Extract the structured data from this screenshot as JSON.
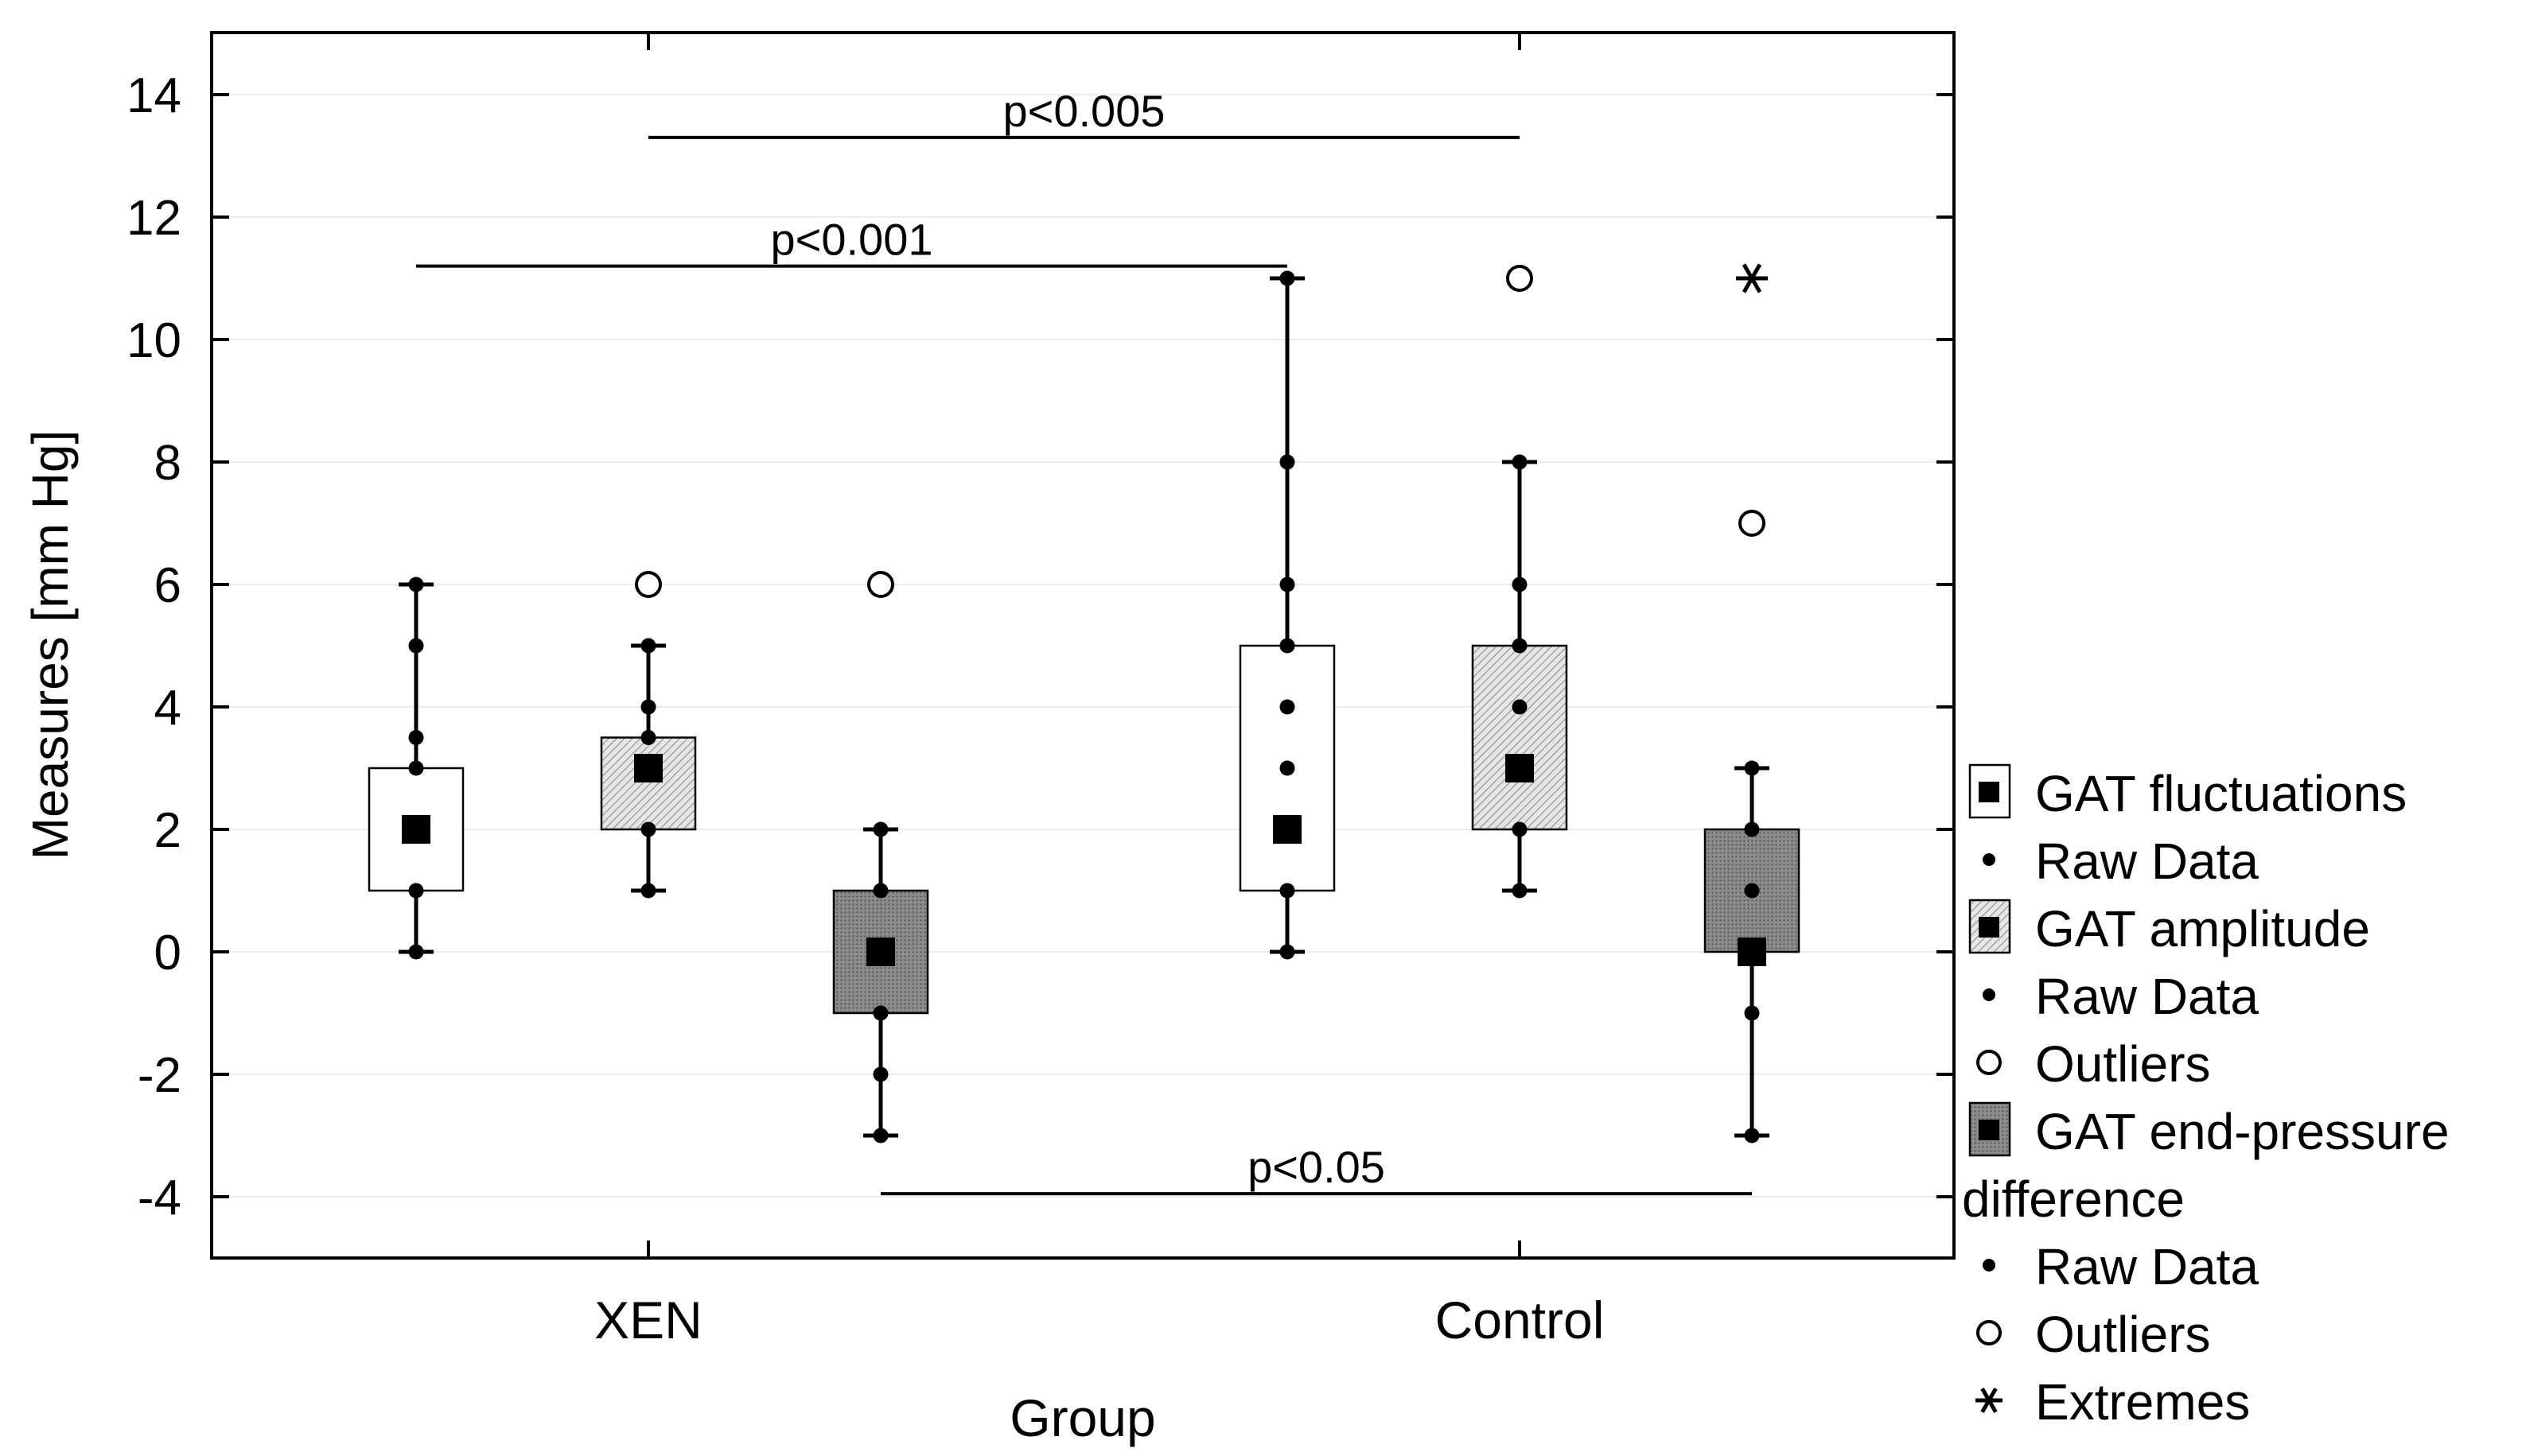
{
  "chart_data": {
    "type": "box",
    "title": "",
    "xlabel": "Group",
    "ylabel": "Measures [mm Hg]",
    "ylim": [
      -5,
      15
    ],
    "yticks": [
      14,
      12,
      10,
      8,
      6,
      4,
      2,
      0,
      -2,
      -4
    ],
    "categories": [
      "XEN",
      "Control"
    ],
    "series": [
      {
        "name": "GAT fluctuations",
        "fill": "white",
        "groups": [
          {
            "group": "XEN",
            "median": 2,
            "q1": 1,
            "q3": 3,
            "whisker_low": 0,
            "whisker_high": 6,
            "raw": [
              0,
              1,
              2,
              3,
              3.5,
              5,
              6
            ],
            "outliers": [],
            "extremes": []
          },
          {
            "group": "Control",
            "median": 2,
            "q1": 1,
            "q3": 5,
            "whisker_low": 0,
            "whisker_high": 11,
            "raw": [
              0,
              1,
              2,
              3,
              4,
              5,
              6,
              8,
              11
            ],
            "outliers": [],
            "extremes": []
          }
        ]
      },
      {
        "name": "GAT amplitude",
        "fill": "light-hatch",
        "groups": [
          {
            "group": "XEN",
            "median": 3,
            "q1": 2,
            "q3": 3.5,
            "whisker_low": 1,
            "whisker_high": 5,
            "raw": [
              1,
              2,
              3,
              3.5,
              4,
              5
            ],
            "outliers": [
              6
            ],
            "extremes": []
          },
          {
            "group": "Control",
            "median": 3,
            "q1": 2,
            "q3": 5,
            "whisker_low": 1,
            "whisker_high": 8,
            "raw": [
              1,
              2,
              3,
              4,
              5,
              6,
              8
            ],
            "outliers": [
              11
            ],
            "extremes": []
          }
        ]
      },
      {
        "name": "GAT end-pressure difference",
        "fill": "dark-dots",
        "groups": [
          {
            "group": "XEN",
            "median": 0,
            "q1": -1,
            "q3": 1,
            "whisker_low": -3,
            "whisker_high": 2,
            "raw": [
              -3,
              -2,
              -1,
              0,
              1,
              2
            ],
            "outliers": [
              6
            ],
            "extremes": []
          },
          {
            "group": "Control",
            "median": 0,
            "q1": 0,
            "q3": 2,
            "whisker_low": -3,
            "whisker_high": 3,
            "raw": [
              -3,
              -1,
              0,
              1,
              2,
              3
            ],
            "outliers": [
              7
            ],
            "extremes": [
              11
            ]
          }
        ]
      }
    ],
    "annotations": [
      {
        "text": "p<0.005",
        "from": [
          1,
          "XEN"
        ],
        "to": [
          1,
          "Control"
        ],
        "y": 13.3
      },
      {
        "text": "p<0.001",
        "from": [
          0,
          "XEN"
        ],
        "to": [
          0,
          "Control"
        ],
        "y": 11.2
      },
      {
        "text": "p<0.05",
        "from": [
          2,
          "XEN"
        ],
        "to": [
          2,
          "Control"
        ],
        "y": -3.95
      }
    ],
    "legend": {
      "position": "right",
      "entries": [
        {
          "label": "GAT fluctuations",
          "kind": "box",
          "fill": "white"
        },
        {
          "label": "Raw Data",
          "kind": "dot"
        },
        {
          "label": "GAT amplitude",
          "kind": "box",
          "fill": "light-hatch"
        },
        {
          "label": "Raw Data",
          "kind": "dot"
        },
        {
          "label": "Outliers",
          "kind": "circle"
        },
        {
          "label": "GAT end-pressure",
          "kind": "box",
          "fill": "dark-dots"
        },
        {
          "label": "difference",
          "kind": "continuation"
        },
        {
          "label": "Raw Data",
          "kind": "dot"
        },
        {
          "label": "Outliers",
          "kind": "circle"
        },
        {
          "label": "Extremes",
          "kind": "star"
        }
      ]
    }
  }
}
